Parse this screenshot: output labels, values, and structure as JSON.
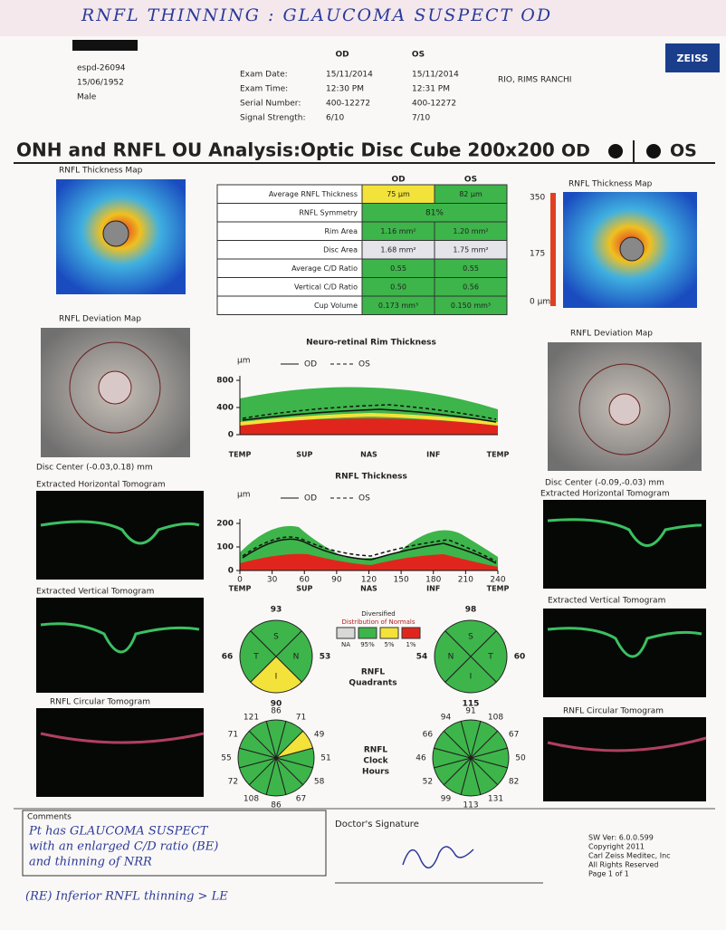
{
  "header": {
    "handwritten_title": "RNFL THINNING : GLAUCOMA SUSPECT OD",
    "patient_id": "espd-26094",
    "dob": "15/06/1952",
    "sex": "Male",
    "logo": "ZEISS",
    "clinic": "RIO, RIMS RANCHI",
    "eyes": [
      "OD",
      "OS"
    ],
    "exam_rows": [
      {
        "label": "Exam Date:",
        "od": "15/11/2014",
        "os": "15/11/2014"
      },
      {
        "label": "Exam Time:",
        "od": "12:30 PM",
        "os": "12:31 PM"
      },
      {
        "label": "Serial Number:",
        "od": "400-12272",
        "os": "400-12272"
      },
      {
        "label": "Signal Strength:",
        "od": "6/10",
        "os": "7/10"
      }
    ]
  },
  "report": {
    "title": "ONH and RNFL OU Analysis:Optic Disc Cube 200x200",
    "od": "OD",
    "os": "OS"
  },
  "maps": {
    "thickness_title": "RNFL Thickness Map",
    "scale": [
      "350",
      "175",
      "0 µm"
    ],
    "deviation_title": "RNFL Deviation Map",
    "disc_center_od": "Disc Center (-0.03,0.18) mm",
    "disc_center_os": "Disc Center (-0.09,-0.03) mm"
  },
  "table": {
    "header": [
      "OD",
      "OS"
    ],
    "rows": [
      {
        "label": "Average RNFL Thickness",
        "od": "75 µm",
        "os": "82 µm",
        "od_color": "#f3e23a",
        "os_color": "#3db54a"
      },
      {
        "label": "RNFL Symmetry",
        "both": "81%",
        "color": "#3db54a"
      },
      {
        "label": "Rim Area",
        "od": "1.16 mm²",
        "os": "1.20 mm²",
        "od_color": "#3db54a",
        "os_color": "#3db54a"
      },
      {
        "label": "Disc Area",
        "od": "1.68 mm²",
        "os": "1.75 mm²",
        "od_color": "#e4e4ea",
        "os_color": "#e4e4ea"
      },
      {
        "label": "Average C/D Ratio",
        "od": "0.55",
        "os": "0.55",
        "od_color": "#3db54a",
        "os_color": "#3db54a"
      },
      {
        "label": "Vertical C/D Ratio",
        "od": "0.50",
        "os": "0.56",
        "od_color": "#3db54a",
        "os_color": "#3db54a"
      },
      {
        "label": "Cup Volume",
        "od": "0.173 mm³",
        "os": "0.150 mm³",
        "od_color": "#3db54a",
        "os_color": "#3db54a"
      }
    ]
  },
  "tomograms": {
    "horizontal": "Extracted Horizontal Tomogram",
    "vertical": "Extracted Vertical Tomogram",
    "circular": "RNFL Circular Tomogram"
  },
  "rim_chart": {
    "title": "Neuro-retinal Rim Thickness",
    "unit": "µm",
    "legend": [
      "OD",
      "OS"
    ],
    "yticks": [
      800,
      400,
      0
    ],
    "xlabels": [
      "TEMP",
      "SUP",
      "NAS",
      "INF",
      "TEMP"
    ]
  },
  "rnfl_chart": {
    "title": "RNFL Thickness",
    "unit": "µm",
    "legend": [
      "OD",
      "OS"
    ],
    "yticks": [
      200,
      100,
      0
    ],
    "xticks": [
      0,
      30,
      60,
      90,
      120,
      150,
      180,
      210,
      240
    ],
    "xlabels": [
      "TEMP",
      "SUP",
      "NAS",
      "INF",
      "TEMP"
    ]
  },
  "normals": {
    "title": [
      "Diversified",
      "Distribution of Normals"
    ],
    "classes": [
      {
        "label": "NA",
        "color": "#d8d8d8"
      },
      {
        "label": "95%",
        "color": "#3db54a"
      },
      {
        "label": "5%",
        "color": "#f3e23a"
      },
      {
        "label": "1%",
        "color": "#e0261c"
      }
    ]
  },
  "quadrants": {
    "label": [
      "RNFL",
      "Quadrants"
    ],
    "od": [
      {
        "label": "S",
        "value": 93,
        "color": "#3db54a"
      },
      {
        "label": "N",
        "value": 53,
        "color": "#3db54a"
      },
      {
        "label": "I",
        "value": 90,
        "color": "#f3e23a"
      },
      {
        "label": "T",
        "value": 66,
        "color": "#3db54a"
      }
    ],
    "os": [
      {
        "label": "S",
        "value": 98,
        "color": "#3db54a"
      },
      {
        "label": "T",
        "value": 60,
        "color": "#3db54a"
      },
      {
        "label": "I",
        "value": 115,
        "color": "#3db54a"
      },
      {
        "label": "N",
        "value": 54,
        "color": "#3db54a"
      }
    ]
  },
  "clock_hours": {
    "label": [
      "RNFL",
      "Clock",
      "Hours"
    ],
    "od": {
      "values": [
        86,
        71,
        49,
        51,
        58,
        67,
        86,
        108,
        72,
        55,
        71,
        121
      ],
      "colors": [
        "#3db54a",
        "#3db54a",
        "#f3e23a",
        "#3db54a",
        "#3db54a",
        "#3db54a",
        "#3db54a",
        "#3db54a",
        "#3db54a",
        "#3db54a",
        "#3db54a",
        "#3db54a"
      ]
    },
    "os": {
      "values": [
        91,
        108,
        67,
        50,
        82,
        131,
        113,
        99,
        52,
        46,
        66,
        94
      ],
      "colors": [
        "#3db54a",
        "#3db54a",
        "#3db54a",
        "#3db54a",
        "#3db54a",
        "#3db54a",
        "#3db54a",
        "#3db54a",
        "#3db54a",
        "#3db54a",
        "#3db54a",
        "#3db54a"
      ]
    }
  },
  "footer": {
    "comments_title": "Comments",
    "comments": [
      "Pt has GLAUCOMA SUSPECT",
      "with an enlarged C/D ratio (BE)",
      "and thinning of NRR"
    ],
    "note": "(RE) Inferior RNFL thinning > LE",
    "signature_label": "Doctor's Signature",
    "software": [
      "SW Ver: 6.0.0.599",
      "Copyright 2011",
      "Carl Zeiss Meditec, Inc",
      "All Rights Reserved",
      "Page 1 of 1"
    ]
  }
}
